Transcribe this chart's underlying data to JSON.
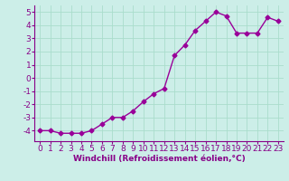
{
  "x": [
    0,
    1,
    2,
    3,
    4,
    5,
    6,
    7,
    8,
    9,
    10,
    11,
    12,
    13,
    14,
    15,
    16,
    17,
    18,
    19,
    20,
    21,
    22,
    23
  ],
  "y": [
    -4.0,
    -4.0,
    -4.2,
    -4.2,
    -4.2,
    -4.0,
    -3.5,
    -3.0,
    -3.0,
    -2.5,
    -1.8,
    -1.2,
    -0.8,
    1.7,
    2.5,
    3.6,
    4.3,
    5.0,
    4.7,
    3.4,
    3.4,
    3.4,
    4.6,
    4.3
  ],
  "line_color": "#990099",
  "marker": "D",
  "markersize": 2.5,
  "linewidth": 1.0,
  "bg_color": "#cceee8",
  "grid_color": "#aaddcc",
  "xlabel": "Windchill (Refroidissement éolien,°C)",
  "xlabel_color": "#880088",
  "ylim": [
    -4.8,
    5.5
  ],
  "xlim": [
    -0.5,
    23.5
  ],
  "yticks": [
    -4,
    -3,
    -2,
    -1,
    0,
    1,
    2,
    3,
    4,
    5
  ],
  "xticks": [
    0,
    1,
    2,
    3,
    4,
    5,
    6,
    7,
    8,
    9,
    10,
    11,
    12,
    13,
    14,
    15,
    16,
    17,
    18,
    19,
    20,
    21,
    22,
    23
  ],
  "tick_color": "#880088",
  "spine_color": "#880088",
  "font_size": 6.5,
  "xlabel_fontsize": 6.5
}
